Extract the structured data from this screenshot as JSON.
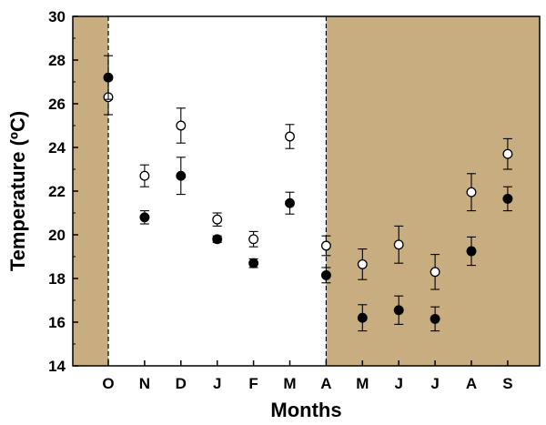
{
  "chart_data": {
    "type": "scatter",
    "title": "",
    "xlabel": "Months",
    "ylabel": "Temperature (ºC)",
    "categories": [
      "O",
      "N",
      "D",
      "J",
      "F",
      "M",
      "A",
      "M",
      "J",
      "J",
      "A",
      "S"
    ],
    "ylim": [
      14,
      30
    ],
    "yticks": [
      14,
      16,
      18,
      20,
      22,
      24,
      26,
      28,
      30
    ],
    "grid": false,
    "legend": "none",
    "shaded_regions": [
      {
        "from": "start",
        "to": "O",
        "color": "#c8ad80"
      },
      {
        "from": "A",
        "to": "end",
        "color": "#c8ad80"
      }
    ],
    "series": [
      {
        "marker": "open-circle",
        "color": "#000000",
        "values": [
          26.3,
          22.7,
          25.0,
          20.7,
          19.8,
          24.5,
          19.5,
          18.65,
          19.55,
          18.3,
          21.95,
          23.7
        ],
        "errors": [
          0.8,
          0.5,
          0.8,
          0.3,
          0.35,
          0.55,
          0.45,
          0.7,
          0.85,
          0.8,
          0.85,
          0.7
        ]
      },
      {
        "marker": "filled-circle",
        "color": "#000000",
        "values": [
          27.2,
          20.8,
          22.7,
          19.8,
          18.7,
          21.45,
          18.15,
          16.2,
          16.55,
          16.15,
          19.25,
          21.65
        ],
        "errors": [
          1.0,
          0.3,
          0.85,
          0.15,
          0.2,
          0.5,
          0.35,
          0.6,
          0.65,
          0.55,
          0.65,
          0.55
        ]
      }
    ]
  }
}
